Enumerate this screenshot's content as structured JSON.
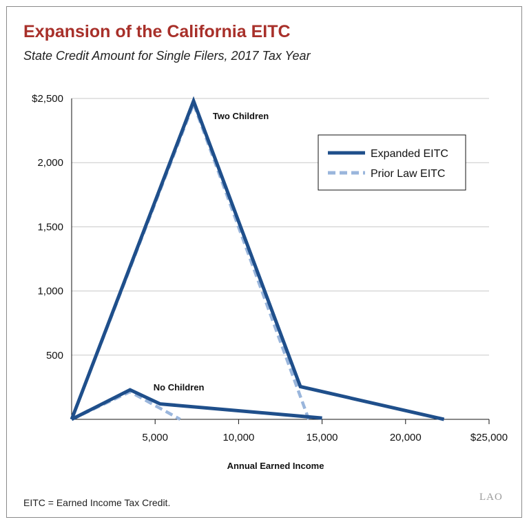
{
  "chart_data": {
    "type": "line",
    "title": "Expansion of the California EITC",
    "subtitle": "State Credit Amount for Single Filers, 2017 Tax Year",
    "xlabel": "Annual Earned Income",
    "ylabel": "",
    "xlim": [
      0,
      25000
    ],
    "ylim": [
      0,
      2500
    ],
    "x_ticks": [
      {
        "value": 5000,
        "label": "5,000"
      },
      {
        "value": 10000,
        "label": "10,000"
      },
      {
        "value": 15000,
        "label": "15,000"
      },
      {
        "value": 20000,
        "label": "20,000"
      },
      {
        "value": 25000,
        "label": "$25,000"
      }
    ],
    "y_ticks": [
      {
        "value": 500,
        "label": "500"
      },
      {
        "value": 1000,
        "label": "1,000"
      },
      {
        "value": 1500,
        "label": "1,500"
      },
      {
        "value": 2000,
        "label": "2,000"
      },
      {
        "value": 2500,
        "label": "$2,500"
      }
    ],
    "grid": "horizontal",
    "legend_position": "top-right",
    "series": [
      {
        "name": "Expanded EITC",
        "group": "Two Children",
        "style": "solid",
        "color": "#1f4f8b",
        "points": [
          [
            0,
            0
          ],
          [
            7300,
            2480
          ],
          [
            13700,
            255
          ],
          [
            22300,
            0
          ]
        ]
      },
      {
        "name": "Prior Law EITC",
        "group": "Two Children",
        "style": "dashed",
        "color": "#9ab6dc",
        "points": [
          [
            0,
            0
          ],
          [
            7300,
            2460
          ],
          [
            14200,
            0
          ]
        ]
      },
      {
        "name": "Expanded EITC",
        "group": "No Children",
        "style": "solid",
        "color": "#1f4f8b",
        "points": [
          [
            0,
            0
          ],
          [
            3500,
            230
          ],
          [
            5300,
            120
          ],
          [
            15000,
            10
          ]
        ]
      },
      {
        "name": "Prior Law EITC",
        "group": "No Children",
        "style": "dashed",
        "color": "#9ab6dc",
        "points": [
          [
            0,
            0
          ],
          [
            3500,
            215
          ],
          [
            6500,
            0
          ]
        ]
      }
    ],
    "legend": [
      {
        "label": "Expanded EITC",
        "style": "solid",
        "color": "#1f4f8b"
      },
      {
        "label": "Prior Law EITC",
        "style": "dashed",
        "color": "#9ab6dc"
      }
    ],
    "annotations": [
      {
        "text": "Two Children",
        "x": 8450,
        "y": 2340
      },
      {
        "text": "No Children",
        "x": 4900,
        "y": 225
      }
    ]
  },
  "footnote": "EITC = Earned Income Tax Credit.",
  "logo_text": "LAO",
  "colors": {
    "title": "#a8302a",
    "expanded": "#1f4f8b",
    "prior": "#9ab6dc",
    "grid": "#c8c8c8"
  }
}
